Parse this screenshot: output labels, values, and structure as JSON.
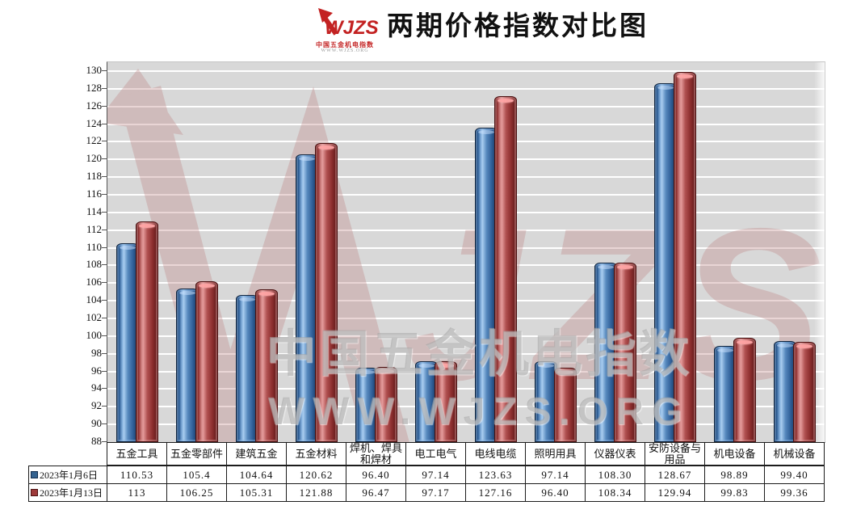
{
  "header": {
    "logo_brand": "WJZS",
    "logo_subtitle": "中国五金机电指数",
    "logo_url": "WWW.WJZS.ORG",
    "title": "两期价格指数对比图"
  },
  "chart_data": {
    "type": "bar",
    "title": "两期价格指数对比图",
    "categories": [
      "五金工具",
      "五金零部件",
      "建筑五金",
      "五金材料",
      "焊机、焊具和焊材",
      "电工电气",
      "电线电缆",
      "照明用具",
      "仪器仪表",
      "安防设备与用品",
      "机电设备",
      "机械设备"
    ],
    "series": [
      {
        "name": "2023年1月6日",
        "color": "#33628f",
        "border": "#122c4c",
        "values": [
          110.53,
          105.4,
          104.64,
          120.62,
          96.4,
          97.14,
          123.63,
          97.14,
          108.3,
          128.67,
          98.89,
          99.4
        ],
        "display": [
          "110.53",
          "105.4",
          "104.64",
          "120.62",
          "96.40",
          "97.14",
          "123.63",
          "97.14",
          "108.30",
          "128.67",
          "98.89",
          "99.40"
        ]
      },
      {
        "name": "2023年1月13日",
        "color": "#9e3a3a",
        "border": "#4c1212",
        "values": [
          113,
          106.25,
          105.31,
          121.88,
          96.47,
          97.17,
          127.16,
          96.4,
          108.34,
          129.94,
          99.83,
          99.36
        ],
        "display": [
          "113",
          "106.25",
          "105.31",
          "121.88",
          "96.47",
          "97.17",
          "127.16",
          "96.40",
          "108.34",
          "129.94",
          "99.83",
          "99.36"
        ]
      }
    ],
    "xlabel": "",
    "ylabel": "",
    "ylim": [
      88,
      130
    ],
    "ytick_step": 2,
    "grid": true,
    "plot_bg": "#d8d8d8",
    "gridline_color": "#ffffff",
    "legend_position": "table-left-bottom",
    "watermark_letters": "JZS",
    "watermark_line1": "中国五金机电指数",
    "watermark_line2": "WWW.WJZS.ORG"
  }
}
